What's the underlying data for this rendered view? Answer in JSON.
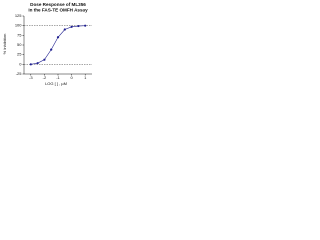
{
  "chart_data": {
    "type": "scatter",
    "title_lines": [
      "Dose Response of ML356",
      "in the FAS-TE OMFH Assay"
    ],
    "x_label": "LOG [ ] , µM",
    "y_label": "% Inhibition",
    "x": [
      -3,
      -2.5,
      -2,
      -1.5,
      -1,
      -0.5,
      0,
      0.5,
      1
    ],
    "series": [
      {
        "color": "#1f1f8f",
        "values": [
          0,
          3,
          12,
          38,
          70,
          90,
          97,
          99,
          100
        ]
      }
    ],
    "reference_lines": [
      0,
      100
    ],
    "xlim": [
      -3.5,
      1.5
    ],
    "xticks": [
      -3,
      -2,
      -1,
      0,
      1
    ],
    "ylim": [
      -25,
      125
    ],
    "yticks": [
      -25,
      0,
      25,
      50,
      75,
      100,
      125
    ]
  }
}
